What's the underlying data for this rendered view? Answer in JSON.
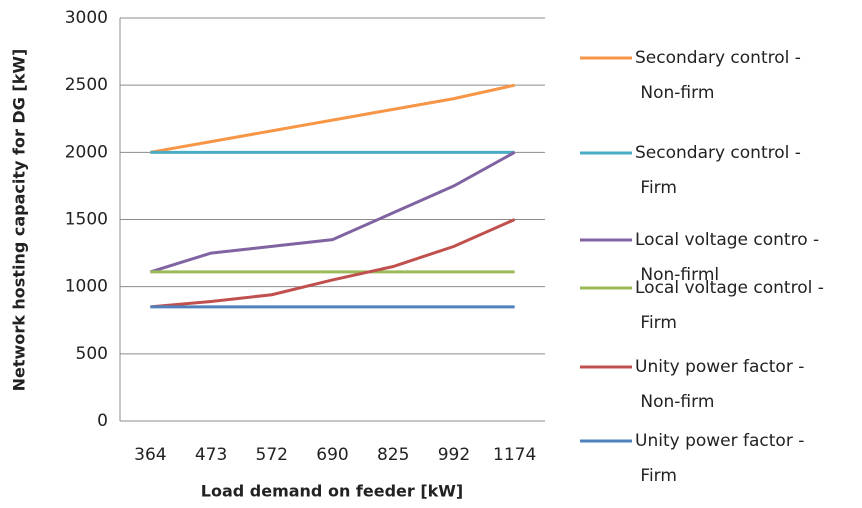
{
  "chart_data": {
    "type": "line",
    "categories": [
      "364",
      "473",
      "572",
      "690",
      "825",
      "992",
      "1174"
    ],
    "xlabel": "Load demand on feeder [kW]",
    "ylabel": "Network hosting capacity for DG [kW]",
    "ylim": [
      0,
      3000
    ],
    "yticks": [
      0,
      500,
      1000,
      1500,
      2000,
      2500,
      3000
    ],
    "grid": true,
    "legend": "right",
    "series": [
      {
        "name": "Secondary control - Non-firm",
        "color": "#f79646",
        "values": [
          2000,
          2080,
          2160,
          2240,
          2320,
          2400,
          2500
        ]
      },
      {
        "name": "Secondary control - Firm",
        "color": "#4bacc6",
        "values": [
          2000,
          2000,
          2000,
          2000,
          2000,
          2000,
          2000
        ]
      },
      {
        "name": "Local voltage contro - Non-firml",
        "color": "#8064a2",
        "values": [
          1110,
          1250,
          1300,
          1350,
          1550,
          1750,
          2000
        ]
      },
      {
        "name": "Local voltage control - Firm",
        "color": "#9bbb59",
        "values": [
          1110,
          1110,
          1110,
          1110,
          1110,
          1110,
          1110
        ]
      },
      {
        "name": "Unity power factor - Non-firm",
        "color": "#c0504d",
        "values": [
          850,
          890,
          940,
          1050,
          1150,
          1300,
          1500
        ]
      },
      {
        "name": "Unity power factor - Firm",
        "color": "#4f81bd",
        "values": [
          850,
          850,
          850,
          850,
          850,
          850,
          850
        ]
      }
    ]
  }
}
